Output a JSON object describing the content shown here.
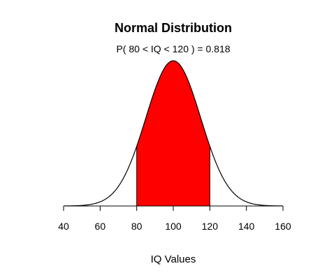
{
  "chart_data": {
    "type": "area",
    "title": "Normal Distribution",
    "subtitle": "P( 80 < IQ < 120 ) = 0.818",
    "xlabel": "IQ Values",
    "ylabel": "",
    "distribution": {
      "mean": 100,
      "sd": 15
    },
    "xlim": [
      40,
      160
    ],
    "xticks": [
      40,
      60,
      80,
      100,
      120,
      140,
      160
    ],
    "shaded_interval": [
      80,
      120
    ],
    "probability": 0.818,
    "shade_color": "#ff0000",
    "curve_color": "#000000",
    "grid": false,
    "legend": "none"
  }
}
